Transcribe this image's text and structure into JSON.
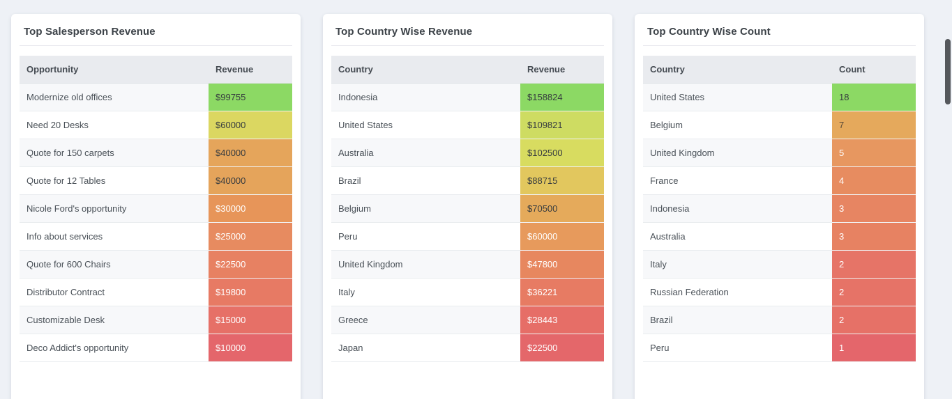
{
  "page": {
    "background": "#eef1f6"
  },
  "scrollbar": {
    "thumb_color": "#55585c"
  },
  "cards": [
    {
      "title": "Top Salesperson Revenue",
      "columns": [
        "Opportunity",
        "Revenue"
      ],
      "rows": [
        {
          "label": "Modernize old offices",
          "value": "$99755",
          "bg": "#8CD964",
          "fg": "#363b3f"
        },
        {
          "label": "Need 20 Desks",
          "value": "$60000",
          "bg": "#DBD761",
          "fg": "#363b3f"
        },
        {
          "label": "Quote for 150 carpets",
          "value": "$40000",
          "bg": "#E5A55B",
          "fg": "#363b3f"
        },
        {
          "label": "Quote for 12 Tables",
          "value": "$40000",
          "bg": "#E5A45B",
          "fg": "#363b3f"
        },
        {
          "label": "Nicole Ford's opportunity",
          "value": "$30000",
          "bg": "#E79559",
          "fg": "#ffffff"
        },
        {
          "label": "Info about services",
          "value": "$25000",
          "bg": "#E78B60",
          "fg": "#ffffff"
        },
        {
          "label": "Quote for 600 Chairs",
          "value": "$22500",
          "bg": "#E78162",
          "fg": "#ffffff"
        },
        {
          "label": "Distributor Contract",
          "value": "$19800",
          "bg": "#E77A64",
          "fg": "#ffffff"
        },
        {
          "label": "Customizable Desk",
          "value": "$15000",
          "bg": "#E67067",
          "fg": "#ffffff"
        },
        {
          "label": "Deco Addict's opportunity",
          "value": "$10000",
          "bg": "#E4666B",
          "fg": "#ffffff"
        }
      ]
    },
    {
      "title": "Top Country Wise Revenue",
      "columns": [
        "Country",
        "Revenue"
      ],
      "rows": [
        {
          "label": "Indonesia",
          "value": "$158824",
          "bg": "#8CD964",
          "fg": "#363b3f"
        },
        {
          "label": "United States",
          "value": "$109821",
          "bg": "#CEDC62",
          "fg": "#363b3f"
        },
        {
          "label": "Australia",
          "value": "$102500",
          "bg": "#D8DC60",
          "fg": "#363b3f"
        },
        {
          "label": "Brazil",
          "value": "$88715",
          "bg": "#E2C75E",
          "fg": "#363b3f"
        },
        {
          "label": "Belgium",
          "value": "$70500",
          "bg": "#E5AA5B",
          "fg": "#363b3f"
        },
        {
          "label": "Peru",
          "value": "$60000",
          "bg": "#E79A5C",
          "fg": "#ffffff"
        },
        {
          "label": "United Kingdom",
          "value": "$47800",
          "bg": "#E7875F",
          "fg": "#ffffff"
        },
        {
          "label": "Italy",
          "value": "$36221",
          "bg": "#E77B63",
          "fg": "#ffffff"
        },
        {
          "label": "Greece",
          "value": "$28443",
          "bg": "#E66E67",
          "fg": "#ffffff"
        },
        {
          "label": "Japan",
          "value": "$22500",
          "bg": "#E4676A",
          "fg": "#ffffff"
        }
      ]
    },
    {
      "title": "Top Country Wise Count",
      "columns": [
        "Country",
        "Count"
      ],
      "rows": [
        {
          "label": "United States",
          "value": "18",
          "bg": "#8CD964",
          "fg": "#363b3f"
        },
        {
          "label": "Belgium",
          "value": "7",
          "bg": "#E5A95C",
          "fg": "#5a4a38"
        },
        {
          "label": "United Kingdom",
          "value": "5",
          "bg": "#E79760",
          "fg": "#ffffff"
        },
        {
          "label": "France",
          "value": "4",
          "bg": "#E78C60",
          "fg": "#ffffff"
        },
        {
          "label": "Indonesia",
          "value": "3",
          "bg": "#E78562",
          "fg": "#ffffff"
        },
        {
          "label": "Australia",
          "value": "3",
          "bg": "#E78262",
          "fg": "#ffffff"
        },
        {
          "label": "Italy",
          "value": "2",
          "bg": "#E67467",
          "fg": "#ffffff"
        },
        {
          "label": "Russian Federation",
          "value": "2",
          "bg": "#E67367",
          "fg": "#ffffff"
        },
        {
          "label": "Brazil",
          "value": "2",
          "bg": "#E67167",
          "fg": "#ffffff"
        },
        {
          "label": "Peru",
          "value": "1",
          "bg": "#E4666B",
          "fg": "#ffffff"
        }
      ]
    }
  ]
}
